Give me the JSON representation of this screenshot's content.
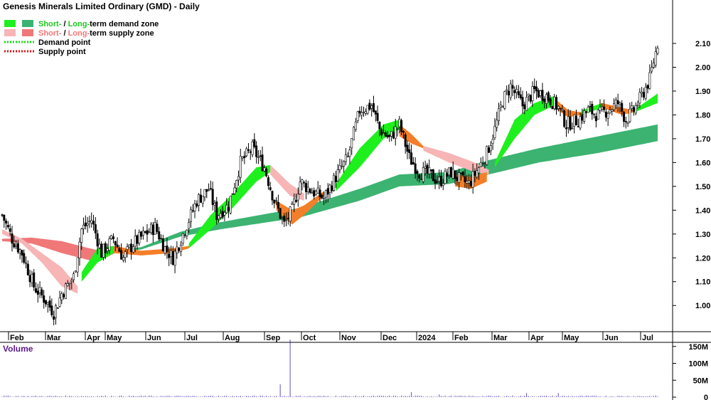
{
  "chart_data": {
    "type": "candlestick",
    "title": "Genesis Minerals Limited Ordinary (GMD) - Daily",
    "legend": [
      {
        "prefix": "Short-",
        "sep": " / ",
        "mid": "Long-",
        "suffix": "term demand zone",
        "colors": [
          "#1ef01e",
          "#3cb371"
        ],
        "accent": "#1ec81e"
      },
      {
        "prefix": "Short-",
        "sep": " / ",
        "mid": "Long-",
        "suffix": "term supply zone",
        "colors": [
          "#f7b5b5",
          "#f07878"
        ],
        "accent": "#f07878"
      },
      {
        "label": "Demand point",
        "color": "#11dd11"
      },
      {
        "label": "Supply point",
        "color": "#dd1111"
      }
    ],
    "x_labels": [
      "Feb",
      "Mar",
      "Apr",
      "May",
      "Jun",
      "Jul",
      "Aug",
      "Sep",
      "Oct",
      "Nov",
      "Dec",
      "2024",
      "Feb",
      "Mar",
      "Apr",
      "May",
      "Jun",
      "Jul"
    ],
    "price_axis": {
      "ticks": [
        "2.10",
        "2.00",
        "1.90",
        "1.80",
        "1.70",
        "1.60",
        "1.50",
        "1.40",
        "1.30",
        "1.20",
        "1.10",
        "1.00"
      ],
      "range": [
        0.92,
        2.15
      ]
    },
    "volume_axis": {
      "label": "Volume",
      "ticks": [
        "150M",
        "100M",
        "50M",
        "0"
      ],
      "range": [
        0,
        160
      ]
    },
    "price_path": [
      [
        0,
        1.38
      ],
      [
        5,
        1.28
      ],
      [
        10,
        1.22
      ],
      [
        16,
        1.08
      ],
      [
        22,
        1.02
      ],
      [
        26,
        0.97
      ],
      [
        30,
        1.05
      ],
      [
        36,
        1.12
      ],
      [
        40,
        1.32
      ],
      [
        45,
        1.36
      ],
      [
        50,
        1.22
      ],
      [
        56,
        1.28
      ],
      [
        61,
        1.2
      ],
      [
        66,
        1.26
      ],
      [
        72,
        1.3
      ],
      [
        77,
        1.33
      ],
      [
        82,
        1.24
      ],
      [
        86,
        1.2
      ],
      [
        92,
        1.32
      ],
      [
        98,
        1.44
      ],
      [
        104,
        1.49
      ],
      [
        108,
        1.38
      ],
      [
        114,
        1.42
      ],
      [
        120,
        1.6
      ],
      [
        126,
        1.66
      ],
      [
        132,
        1.58
      ],
      [
        137,
        1.44
      ],
      [
        142,
        1.34
      ],
      [
        146,
        1.4
      ],
      [
        150,
        1.52
      ],
      [
        156,
        1.48
      ],
      [
        162,
        1.45
      ],
      [
        168,
        1.54
      ],
      [
        174,
        1.62
      ],
      [
        180,
        1.82
      ],
      [
        186,
        1.84
      ],
      [
        190,
        1.74
      ],
      [
        195,
        1.7
      ],
      [
        200,
        1.76
      ],
      [
        205,
        1.62
      ],
      [
        210,
        1.56
      ],
      [
        215,
        1.55
      ],
      [
        220,
        1.52
      ],
      [
        226,
        1.56
      ],
      [
        230,
        1.53
      ],
      [
        235,
        1.51
      ],
      [
        240,
        1.58
      ],
      [
        244,
        1.64
      ],
      [
        248,
        1.74
      ],
      [
        252,
        1.86
      ],
      [
        256,
        1.92
      ],
      [
        262,
        1.84
      ],
      [
        268,
        1.9
      ],
      [
        274,
        1.88
      ],
      [
        280,
        1.83
      ],
      [
        284,
        1.76
      ],
      [
        290,
        1.78
      ],
      [
        295,
        1.82
      ],
      [
        300,
        1.8
      ],
      [
        305,
        1.82
      ],
      [
        310,
        1.85
      ],
      [
        314,
        1.78
      ],
      [
        318,
        1.82
      ],
      [
        322,
        1.88
      ],
      [
        326,
        1.95
      ],
      [
        330,
        2.1
      ]
    ],
    "bars_total": 331,
    "long_term_demand_zone": {
      "color": "#3cb371",
      "start": [
        58,
        1.22,
        1.23
      ],
      "end": [
        330,
        1.69,
        1.76
      ],
      "key": [
        [
          58,
          1.225,
          1.232
        ],
        [
          70,
          1.235,
          1.245
        ],
        [
          90,
          1.29,
          1.31
        ],
        [
          110,
          1.32,
          1.35
        ],
        [
          150,
          1.37,
          1.41
        ],
        [
          180,
          1.44,
          1.49
        ],
        [
          200,
          1.5,
          1.55
        ],
        [
          225,
          1.51,
          1.56
        ],
        [
          245,
          1.55,
          1.61
        ],
        [
          270,
          1.6,
          1.66
        ],
        [
          300,
          1.64,
          1.71
        ],
        [
          330,
          1.69,
          1.76
        ]
      ]
    },
    "long_term_supply_zone": {
      "color": "#f07878",
      "key": [
        [
          0,
          1.27,
          1.28
        ],
        [
          15,
          1.26,
          1.285
        ],
        [
          30,
          1.22,
          1.27
        ],
        [
          44,
          1.19,
          1.24
        ],
        [
          52,
          1.2,
          1.225
        ],
        [
          58,
          1.225,
          1.232
        ]
      ]
    },
    "short_term_zones": [
      {
        "kind": "supply",
        "color": "#f7b5b5",
        "key": [
          [
            0,
            1.3,
            1.32
          ],
          [
            10,
            1.26,
            1.28
          ],
          [
            20,
            1.18,
            1.22
          ],
          [
            30,
            1.08,
            1.16
          ],
          [
            38,
            1.05,
            1.08
          ]
        ]
      },
      {
        "kind": "demand",
        "color": "#1ef01e",
        "key": [
          [
            40,
            1.1,
            1.14
          ],
          [
            48,
            1.18,
            1.24
          ],
          [
            56,
            1.22,
            1.25
          ]
        ]
      },
      {
        "kind": "transition",
        "color": "#f47f2a",
        "key": [
          [
            56,
            1.22,
            1.25
          ],
          [
            70,
            1.21,
            1.23
          ],
          [
            86,
            1.22,
            1.24
          ],
          [
            94,
            1.24,
            1.25
          ]
        ]
      },
      {
        "kind": "demand",
        "color": "#1ef01e",
        "key": [
          [
            94,
            1.24,
            1.26
          ],
          [
            105,
            1.32,
            1.38
          ],
          [
            115,
            1.4,
            1.46
          ],
          [
            128,
            1.52,
            1.58
          ],
          [
            135,
            1.56,
            1.59
          ]
        ]
      },
      {
        "kind": "supply",
        "color": "#f7b5b5",
        "key": [
          [
            135,
            1.55,
            1.59
          ],
          [
            145,
            1.46,
            1.51
          ],
          [
            152,
            1.44,
            1.47
          ]
        ]
      },
      {
        "kind": "transition",
        "color": "#f47f2a",
        "key": [
          [
            138,
            1.4,
            1.44
          ],
          [
            146,
            1.34,
            1.4
          ],
          [
            152,
            1.38,
            1.42
          ],
          [
            162,
            1.46,
            1.48
          ]
        ]
      },
      {
        "kind": "demand",
        "color": "#1ef01e",
        "key": [
          [
            168,
            1.48,
            1.51
          ],
          [
            180,
            1.58,
            1.66
          ],
          [
            192,
            1.7,
            1.76
          ],
          [
            200,
            1.74,
            1.78
          ]
        ]
      },
      {
        "kind": "transition",
        "color": "#f47f2a",
        "key": [
          [
            200,
            1.71,
            1.76
          ],
          [
            206,
            1.68,
            1.72
          ],
          [
            212,
            1.66,
            1.67
          ]
        ]
      },
      {
        "kind": "supply",
        "color": "#f7b5b5",
        "key": [
          [
            212,
            1.65,
            1.67
          ],
          [
            225,
            1.6,
            1.64
          ],
          [
            238,
            1.56,
            1.6
          ],
          [
            245,
            1.55,
            1.57
          ]
        ]
      },
      {
        "kind": "transition",
        "color": "#f47f2a",
        "key": [
          [
            228,
            1.5,
            1.55
          ],
          [
            236,
            1.49,
            1.54
          ],
          [
            244,
            1.52,
            1.56
          ]
        ]
      },
      {
        "kind": "demand",
        "color": "#1ef01e",
        "key": [
          [
            248,
            1.58,
            1.6
          ],
          [
            258,
            1.7,
            1.78
          ],
          [
            268,
            1.8,
            1.85
          ],
          [
            278,
            1.84,
            1.88
          ]
        ]
      },
      {
        "kind": "transition",
        "color": "#f47f2a",
        "key": [
          [
            278,
            1.83,
            1.87
          ],
          [
            285,
            1.79,
            1.82
          ],
          [
            292,
            1.8,
            1.81
          ]
        ]
      },
      {
        "kind": "demand",
        "color": "#1ef01e",
        "key": [
          [
            292,
            1.8,
            1.82
          ],
          [
            302,
            1.83,
            1.85
          ]
        ]
      },
      {
        "kind": "transition",
        "color": "#f47f2a",
        "key": [
          [
            302,
            1.83,
            1.85
          ],
          [
            312,
            1.8,
            1.83
          ],
          [
            318,
            1.81,
            1.82
          ]
        ]
      },
      {
        "kind": "demand",
        "color": "#1ef01e",
        "key": [
          [
            318,
            1.81,
            1.82
          ],
          [
            330,
            1.85,
            1.89
          ]
        ]
      }
    ],
    "volume_spikes": [
      [
        145,
        170
      ],
      [
        140,
        38
      ],
      [
        206,
        15
      ],
      [
        280,
        12
      ],
      [
        264,
        12
      ],
      [
        220,
        8
      ]
    ]
  },
  "colors": {
    "candle": "#000000",
    "volume_bar": "#7a6cc8",
    "grid": "#d9d9d9"
  }
}
